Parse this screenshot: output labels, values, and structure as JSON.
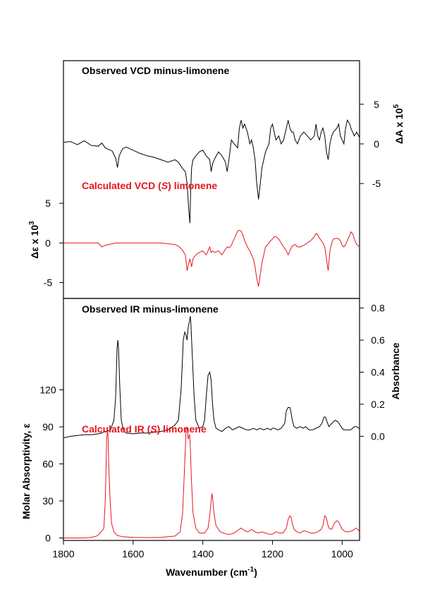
{
  "colors": {
    "observed": "#000000",
    "calculated": "#e8141c",
    "axis": "#000000"
  },
  "xaxis": {
    "label": "Wavenumber (cm",
    "label_sup": "-1",
    "label_end": ")",
    "range": [
      1800,
      950
    ],
    "ticks": [
      1800,
      1600,
      1400,
      1200,
      1000
    ],
    "tick_labels": [
      "1800",
      "1600",
      "1400",
      "1200",
      "1000"
    ]
  },
  "chart_data": [
    {
      "type": "line",
      "panel": "vcd",
      "title": "Observed VCD minus-limonene",
      "ylabel_prefix": "ΔA x 10",
      "ylabel_sup": "5",
      "y_side": "right",
      "ylim": [
        -19.5,
        10.5
      ],
      "yticks": [
        -5,
        0,
        5
      ],
      "ytick_labels": [
        "-5",
        "0",
        "5"
      ],
      "x": [
        1800,
        1780,
        1760,
        1740,
        1720,
        1700,
        1690,
        1680,
        1670,
        1660,
        1650,
        1645,
        1640,
        1630,
        1620,
        1600,
        1580,
        1560,
        1540,
        1520,
        1500,
        1480,
        1470,
        1460,
        1450,
        1445,
        1440,
        1437,
        1435,
        1432,
        1428,
        1420,
        1410,
        1400,
        1390,
        1380,
        1376,
        1372,
        1365,
        1355,
        1345,
        1335,
        1330,
        1325,
        1318,
        1310,
        1300,
        1295,
        1290,
        1285,
        1280,
        1272,
        1265,
        1260,
        1255,
        1250,
        1245,
        1240,
        1235,
        1230,
        1225,
        1220,
        1210,
        1205,
        1200,
        1195,
        1190,
        1182,
        1175,
        1168,
        1160,
        1155,
        1150,
        1145,
        1140,
        1135,
        1128,
        1120,
        1110,
        1100,
        1090,
        1080,
        1075,
        1070,
        1065,
        1060,
        1055,
        1050,
        1045,
        1040,
        1035,
        1030,
        1025,
        1015,
        1010,
        1005,
        1000,
        995,
        990,
        985,
        978,
        975,
        970,
        965,
        958,
        950
      ],
      "series": [
        {
          "name": "",
          "role": "observed",
          "values": [
            0.2,
            0.3,
            -0.1,
            0.4,
            -0.2,
            -0.3,
            0.1,
            -0.5,
            -0.7,
            -0.9,
            -1.8,
            -3.0,
            -1.5,
            -0.6,
            -0.4,
            -0.8,
            -1.2,
            -1.5,
            -1.7,
            -2.0,
            -2.3,
            -2.0,
            -2.3,
            -3.0,
            -3.5,
            -5.0,
            -8.5,
            -10.0,
            -6.0,
            -3.0,
            -2.0,
            -1.5,
            -1.0,
            -0.8,
            -1.5,
            -2.0,
            -3.5,
            -2.5,
            -1.8,
            -1.0,
            -1.5,
            -2.3,
            -3.5,
            -2.0,
            0.5,
            0.0,
            -0.5,
            2.0,
            3.0,
            2.0,
            2.5,
            1.5,
            0.0,
            0.5,
            -0.5,
            -2.0,
            -5.0,
            -7.0,
            -5.0,
            -3.0,
            -2.0,
            -1.0,
            0.0,
            2.0,
            2.5,
            1.5,
            0.5,
            1.0,
            0.0,
            0.5,
            2.0,
            3.0,
            2.0,
            1.5,
            1.5,
            0.5,
            0.0,
            1.0,
            1.5,
            1.0,
            0.5,
            1.0,
            2.5,
            1.0,
            0.5,
            1.5,
            2.0,
            1.0,
            -1.0,
            -2.0,
            0.0,
            1.0,
            1.5,
            2.0,
            2.5,
            1.0,
            0.5,
            0.0,
            2.0,
            3.0,
            2.5,
            2.0,
            1.5,
            1.0,
            1.5,
            0.8
          ]
        },
        {
          "name": "",
          "role": "calculated",
          "values": [
            0.0,
            0.0,
            0.0,
            0.0,
            0.0,
            0.0,
            -0.5,
            -0.3,
            -0.2,
            -0.1,
            0.0,
            0.0,
            0.0,
            0.0,
            0.0,
            0.0,
            0.0,
            0.0,
            0.0,
            0.0,
            -0.1,
            -0.2,
            -0.4,
            -0.8,
            -1.5,
            -3.5,
            -2.5,
            -2.0,
            -2.5,
            -3.0,
            -2.0,
            -1.5,
            -1.2,
            -1.0,
            -1.5,
            -0.5,
            -1.2,
            -1.0,
            -1.2,
            -1.0,
            -1.5,
            -0.8,
            -0.5,
            -0.6,
            -0.3,
            0.5,
            1.5,
            1.6,
            1.5,
            1.0,
            0.3,
            -0.5,
            -1.0,
            -1.5,
            -2.0,
            -3.0,
            -4.5,
            -5.5,
            -4.0,
            -2.5,
            -1.5,
            -0.5,
            0.0,
            0.3,
            0.5,
            0.8,
            0.8,
            0.5,
            0.0,
            -0.5,
            -1.0,
            -1.5,
            -1.0,
            -0.5,
            -0.3,
            -0.2,
            -0.5,
            -0.5,
            -0.3,
            0.0,
            0.3,
            0.8,
            1.2,
            1.0,
            0.6,
            0.3,
            0.0,
            -0.5,
            -2.0,
            -3.5,
            -1.0,
            0.0,
            0.5,
            0.6,
            0.5,
            0.3,
            -0.3,
            -0.5,
            -0.2,
            0.3,
            1.0,
            1.4,
            1.2,
            0.5,
            -0.2,
            -0.5
          ]
        }
      ],
      "secondary_axis": {
        "ylabel_prefix": "Δε x 10",
        "ylabel_sup": "3",
        "y_side": "left",
        "ylim": [
          -7,
          23
        ],
        "yticks": [
          -5,
          0,
          5
        ],
        "ytick_labels": [
          "-5",
          "0",
          "5"
        ]
      },
      "calculated_title_pre": "Calculated VCD (",
      "calculated_title_s": "S",
      "calculated_title_post": ") limonene"
    },
    {
      "type": "line",
      "panel": "ir",
      "title": "Observed IR minus-limonene",
      "ylabel": "Absorbance",
      "y_side": "right",
      "ylim": [
        -0.65,
        0.86
      ],
      "yticks": [
        0.0,
        0.2,
        0.4,
        0.6,
        0.8
      ],
      "ytick_labels": [
        "0.0",
        "0.2",
        "0.4",
        "0.6",
        "0.8"
      ],
      "x": [
        1800,
        1780,
        1760,
        1740,
        1720,
        1700,
        1690,
        1682,
        1675,
        1665,
        1655,
        1650,
        1646,
        1644,
        1642,
        1638,
        1634,
        1628,
        1620,
        1600,
        1580,
        1560,
        1540,
        1520,
        1500,
        1480,
        1470,
        1462,
        1456,
        1452,
        1448,
        1445,
        1442,
        1438,
        1436,
        1434,
        1430,
        1425,
        1420,
        1410,
        1400,
        1395,
        1390,
        1385,
        1380,
        1376,
        1372,
        1368,
        1362,
        1355,
        1345,
        1335,
        1325,
        1315,
        1305,
        1295,
        1285,
        1275,
        1265,
        1255,
        1245,
        1235,
        1225,
        1215,
        1205,
        1200,
        1195,
        1185,
        1175,
        1165,
        1160,
        1155,
        1150,
        1147,
        1143,
        1138,
        1130,
        1120,
        1112,
        1105,
        1095,
        1085,
        1075,
        1065,
        1058,
        1052,
        1048,
        1043,
        1038,
        1030,
        1020,
        1012,
        1006,
        1000,
        995,
        985,
        975,
        970,
        965,
        958,
        952,
        950
      ],
      "series": [
        {
          "name": "",
          "role": "observed",
          "values": [
            -0.01,
            0.0,
            0.005,
            0.01,
            0.01,
            0.015,
            0.02,
            0.03,
            0.03,
            0.04,
            0.1,
            0.25,
            0.55,
            0.6,
            0.55,
            0.3,
            0.1,
            0.04,
            0.02,
            0.015,
            0.02,
            0.02,
            0.025,
            0.03,
            0.04,
            0.07,
            0.1,
            0.3,
            0.6,
            0.65,
            0.63,
            0.6,
            0.68,
            0.72,
            0.75,
            0.7,
            0.5,
            0.25,
            0.1,
            0.05,
            0.06,
            0.1,
            0.25,
            0.38,
            0.4,
            0.35,
            0.2,
            0.1,
            0.05,
            0.04,
            0.03,
            0.05,
            0.06,
            0.04,
            0.05,
            0.06,
            0.05,
            0.04,
            0.04,
            0.05,
            0.04,
            0.05,
            0.04,
            0.05,
            0.04,
            0.05,
            0.05,
            0.04,
            0.05,
            0.08,
            0.16,
            0.18,
            0.18,
            0.15,
            0.1,
            0.06,
            0.05,
            0.06,
            0.05,
            0.06,
            0.04,
            0.04,
            0.05,
            0.06,
            0.08,
            0.12,
            0.12,
            0.09,
            0.06,
            0.08,
            0.1,
            0.09,
            0.07,
            0.05,
            0.04,
            0.04,
            0.04,
            0.05,
            0.06,
            0.06,
            0.05,
            0.05
          ]
        }
      ],
      "secondary_axis": {
        "ylabel": "Molar Absorptivity, ε",
        "y_side": "left",
        "ylim": [
          -2,
          194
        ],
        "yticks": [
          0,
          30,
          60,
          90,
          120
        ],
        "ytick_labels": [
          "0",
          "30",
          "60",
          "90",
          "120"
        ],
        "x": [
          1800,
          1780,
          1760,
          1740,
          1720,
          1705,
          1698,
          1692,
          1688,
          1684,
          1680,
          1676,
          1674,
          1672,
          1670,
          1666,
          1662,
          1655,
          1645,
          1630,
          1600,
          1560,
          1520,
          1480,
          1465,
          1458,
          1452,
          1448,
          1446,
          1444,
          1442,
          1440,
          1438,
          1436,
          1433,
          1428,
          1420,
          1410,
          1395,
          1385,
          1380,
          1376,
          1374,
          1372,
          1368,
          1362,
          1350,
          1340,
          1330,
          1320,
          1310,
          1300,
          1290,
          1280,
          1270,
          1260,
          1250,
          1240,
          1230,
          1220,
          1210,
          1200,
          1190,
          1180,
          1170,
          1160,
          1155,
          1150,
          1147,
          1143,
          1138,
          1130,
          1120,
          1110,
          1100,
          1090,
          1080,
          1070,
          1060,
          1055,
          1050,
          1046,
          1042,
          1038,
          1030,
          1022,
          1015,
          1010,
          1005,
          1000,
          995,
          990,
          980,
          970,
          960,
          955,
          950
        ],
        "values": [
          0,
          0,
          0,
          0,
          0.5,
          1.5,
          3,
          5,
          6,
          8,
          30,
          80,
          86,
          84,
          60,
          30,
          12,
          5,
          2,
          1,
          0.5,
          0.3,
          0.5,
          1.5,
          5,
          20,
          60,
          88,
          90,
          86,
          80,
          82,
          84,
          75,
          50,
          20,
          8,
          4,
          4,
          8,
          18,
          30,
          36,
          33,
          20,
          10,
          5,
          4,
          3,
          3,
          4,
          6,
          8,
          6,
          5,
          7,
          5,
          4,
          5,
          4,
          3,
          3,
          5,
          4,
          4,
          8,
          15,
          18,
          17,
          12,
          7,
          5,
          4,
          6,
          5,
          4,
          4,
          5,
          7,
          10,
          18,
          17,
          12,
          8,
          7,
          12,
          14,
          13,
          10,
          7,
          6,
          5,
          5,
          6,
          8,
          7,
          5
        ]
      },
      "calculated_title_pre": "Calculated IR (",
      "calculated_title_s": "S",
      "calculated_title_post": ") limonene"
    }
  ]
}
